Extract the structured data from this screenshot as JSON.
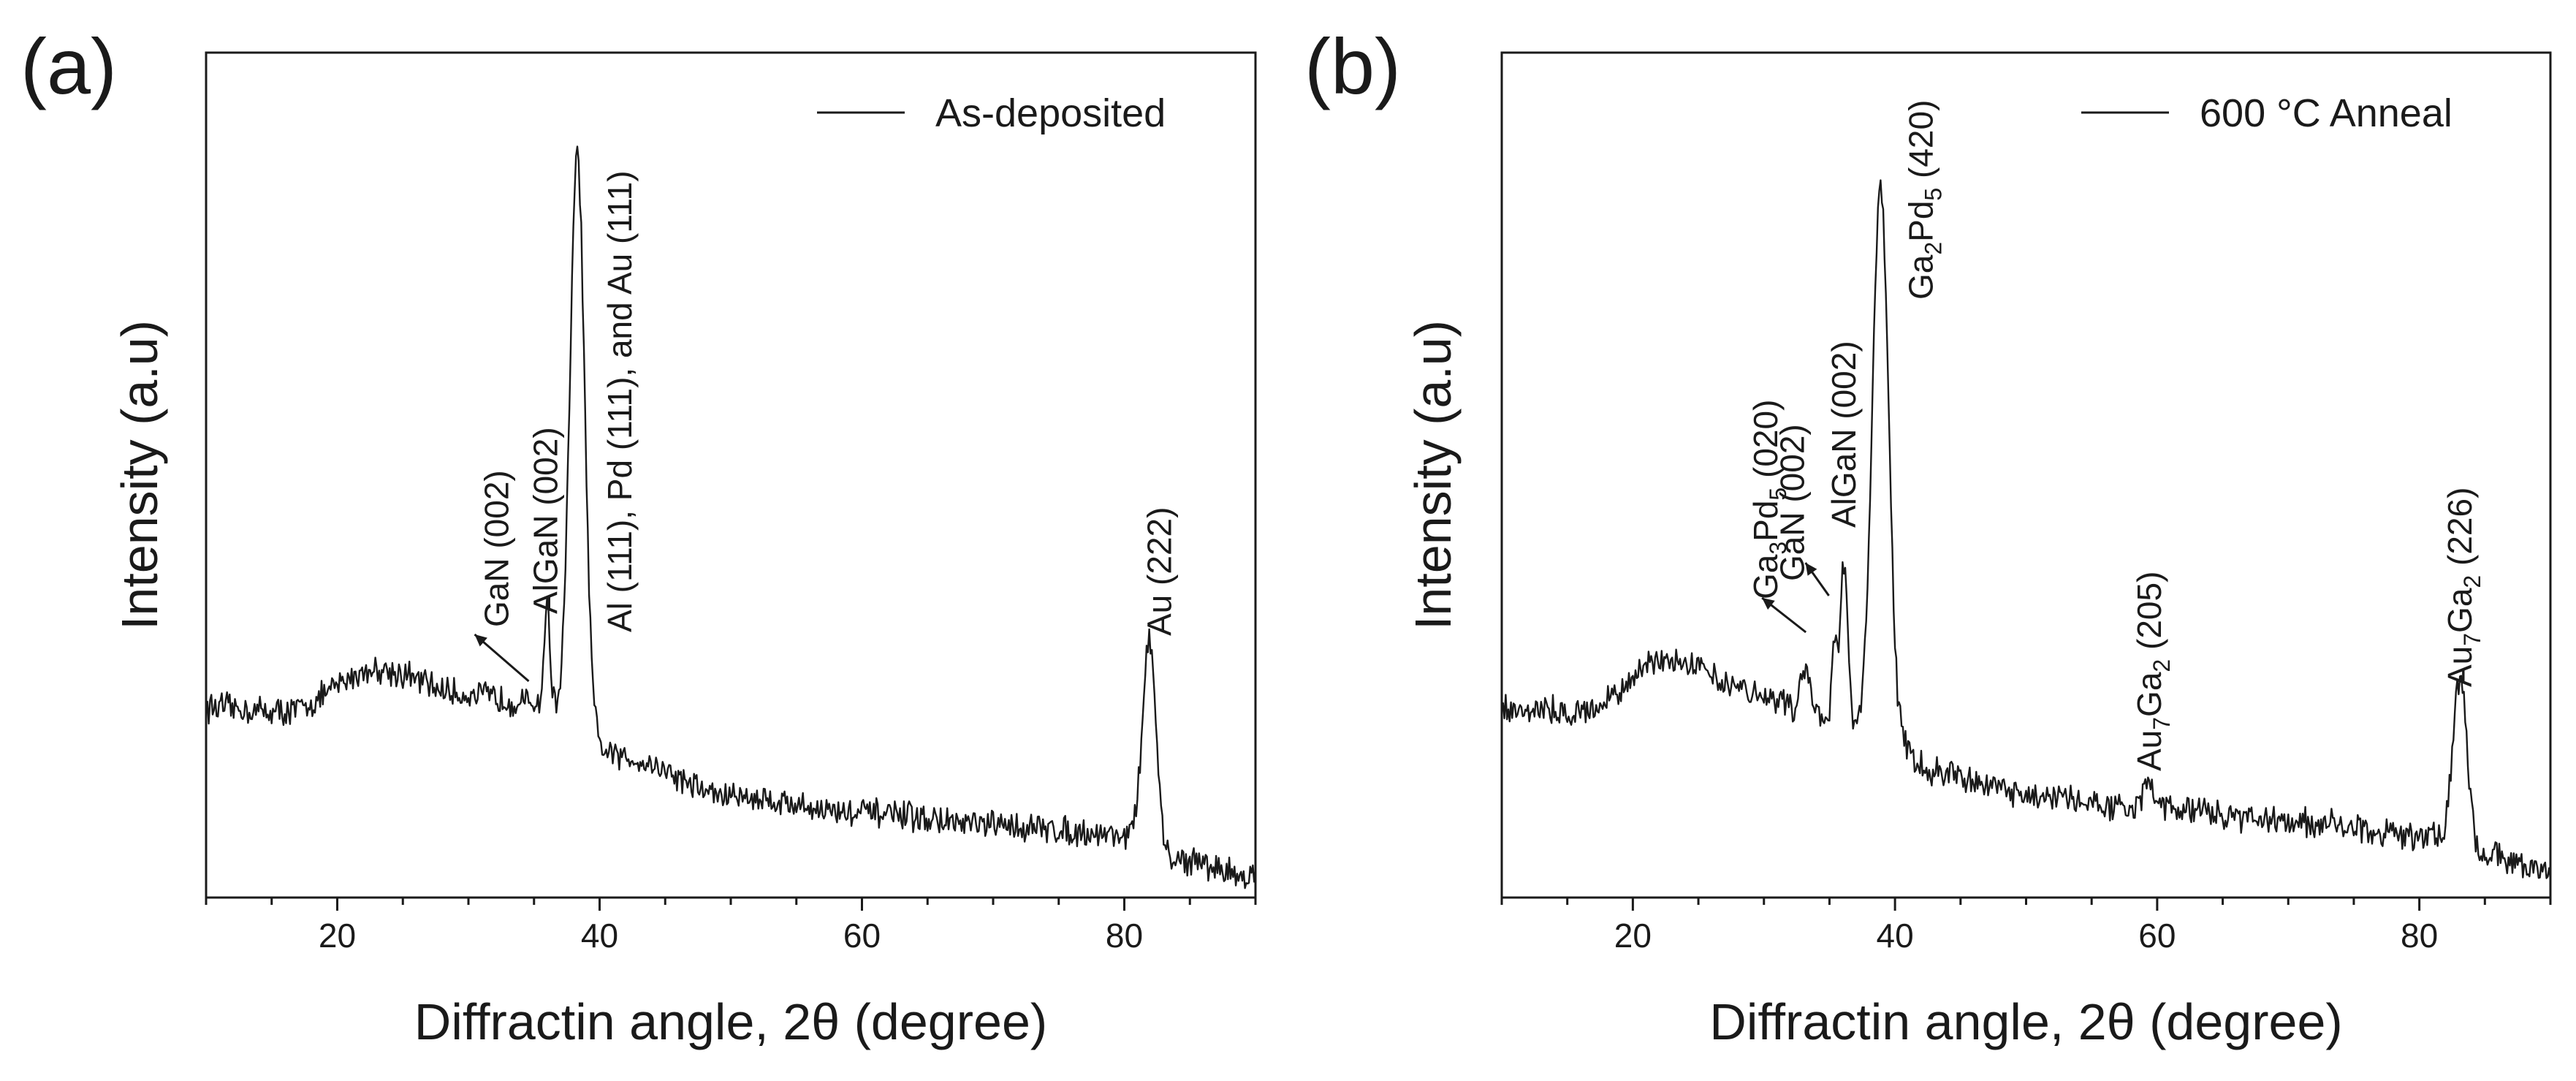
{
  "chart_data": [
    {
      "type": "line",
      "panel_label": "(a)",
      "xlabel": "Diffractin angle, 2θ (degree)",
      "ylabel": "Intensity (a.u)",
      "xlim": [
        10,
        90
      ],
      "xticks": [
        "20",
        "40",
        "60",
        "80"
      ],
      "legend": {
        "label": "As-deposited",
        "location": "top-right"
      },
      "grid": false,
      "baseline": [
        [
          10,
          0.225
        ],
        [
          16,
          0.22
        ],
        [
          23,
          0.27
        ],
        [
          30,
          0.24
        ],
        [
          35,
          0.23
        ],
        [
          42,
          0.165
        ],
        [
          50,
          0.12
        ],
        [
          60,
          0.1
        ],
        [
          70,
          0.085
        ],
        [
          80,
          0.075
        ],
        [
          84,
          0.045
        ],
        [
          90,
          0.025
        ]
      ],
      "peaks": [
        {
          "x": 36.0,
          "height": 0.12,
          "width": 0.22
        },
        {
          "x": 38.3,
          "height": 0.68,
          "width": 0.55
        },
        {
          "x": 81.9,
          "height": 0.245,
          "width": 0.5
        }
      ],
      "annotations": [
        {
          "text": "GaN (002)",
          "x": 35.6,
          "arrow": true
        },
        {
          "text": "AlGaN (002)",
          "x": 36.0
        },
        {
          "text": "Al (111), Pd (111), and Au (111)",
          "x": 38.3
        },
        {
          "text": "Au (222)",
          "x": 81.9
        }
      ]
    },
    {
      "type": "line",
      "panel_label": "(b)",
      "xlabel": "Diffractin angle, 2θ (degree)",
      "ylabel": "Intensity (a.u)",
      "xlim": [
        10,
        90
      ],
      "xticks": [
        "20",
        "40",
        "60",
        "80"
      ],
      "legend": {
        "label": "600 °C Anneal",
        "location": "top-right"
      },
      "grid": false,
      "baseline": [
        [
          10,
          0.225
        ],
        [
          16,
          0.22
        ],
        [
          23,
          0.285
        ],
        [
          30,
          0.24
        ],
        [
          33,
          0.22
        ],
        [
          36,
          0.2
        ],
        [
          38,
          0.21
        ],
        [
          43,
          0.15
        ],
        [
          50,
          0.12
        ],
        [
          60,
          0.105
        ],
        [
          70,
          0.09
        ],
        [
          80,
          0.075
        ],
        [
          85,
          0.05
        ],
        [
          90,
          0.03
        ]
      ],
      "peaks": [
        {
          "x": 33.2,
          "height": 0.055,
          "width": 0.35
        },
        {
          "x": 35.4,
          "height": 0.1,
          "width": 0.2
        },
        {
          "x": 36.1,
          "height": 0.2,
          "width": 0.28
        },
        {
          "x": 38.9,
          "height": 0.64,
          "width": 0.6
        },
        {
          "x": 59.4,
          "height": 0.035,
          "width": 0.4
        },
        {
          "x": 83.1,
          "height": 0.2,
          "width": 0.55
        }
      ],
      "annotations": [
        {
          "text": "Ga",
          "sub1": "3",
          "mid": "Pd",
          "sub2": "5",
          "rest": " (020)",
          "x": 33.2,
          "arrow": true
        },
        {
          "text": "GaN (002)",
          "x": 35.4,
          "arrow": true
        },
        {
          "text": "AlGaN (002)",
          "x": 36.1
        },
        {
          "text": "Ga",
          "sub1": "2",
          "mid": "Pd",
          "sub2": "5",
          "rest": " (420)",
          "x": 38.9
        },
        {
          "text": "Au",
          "sub1": "7",
          "mid": "Ga",
          "sub2": "2",
          "rest": " (205)",
          "x": 59.4
        },
        {
          "text": "Au",
          "sub1": "7",
          "mid": "Ga",
          "sub2": "2",
          "rest": " (226)",
          "x": 83.1
        }
      ]
    }
  ]
}
